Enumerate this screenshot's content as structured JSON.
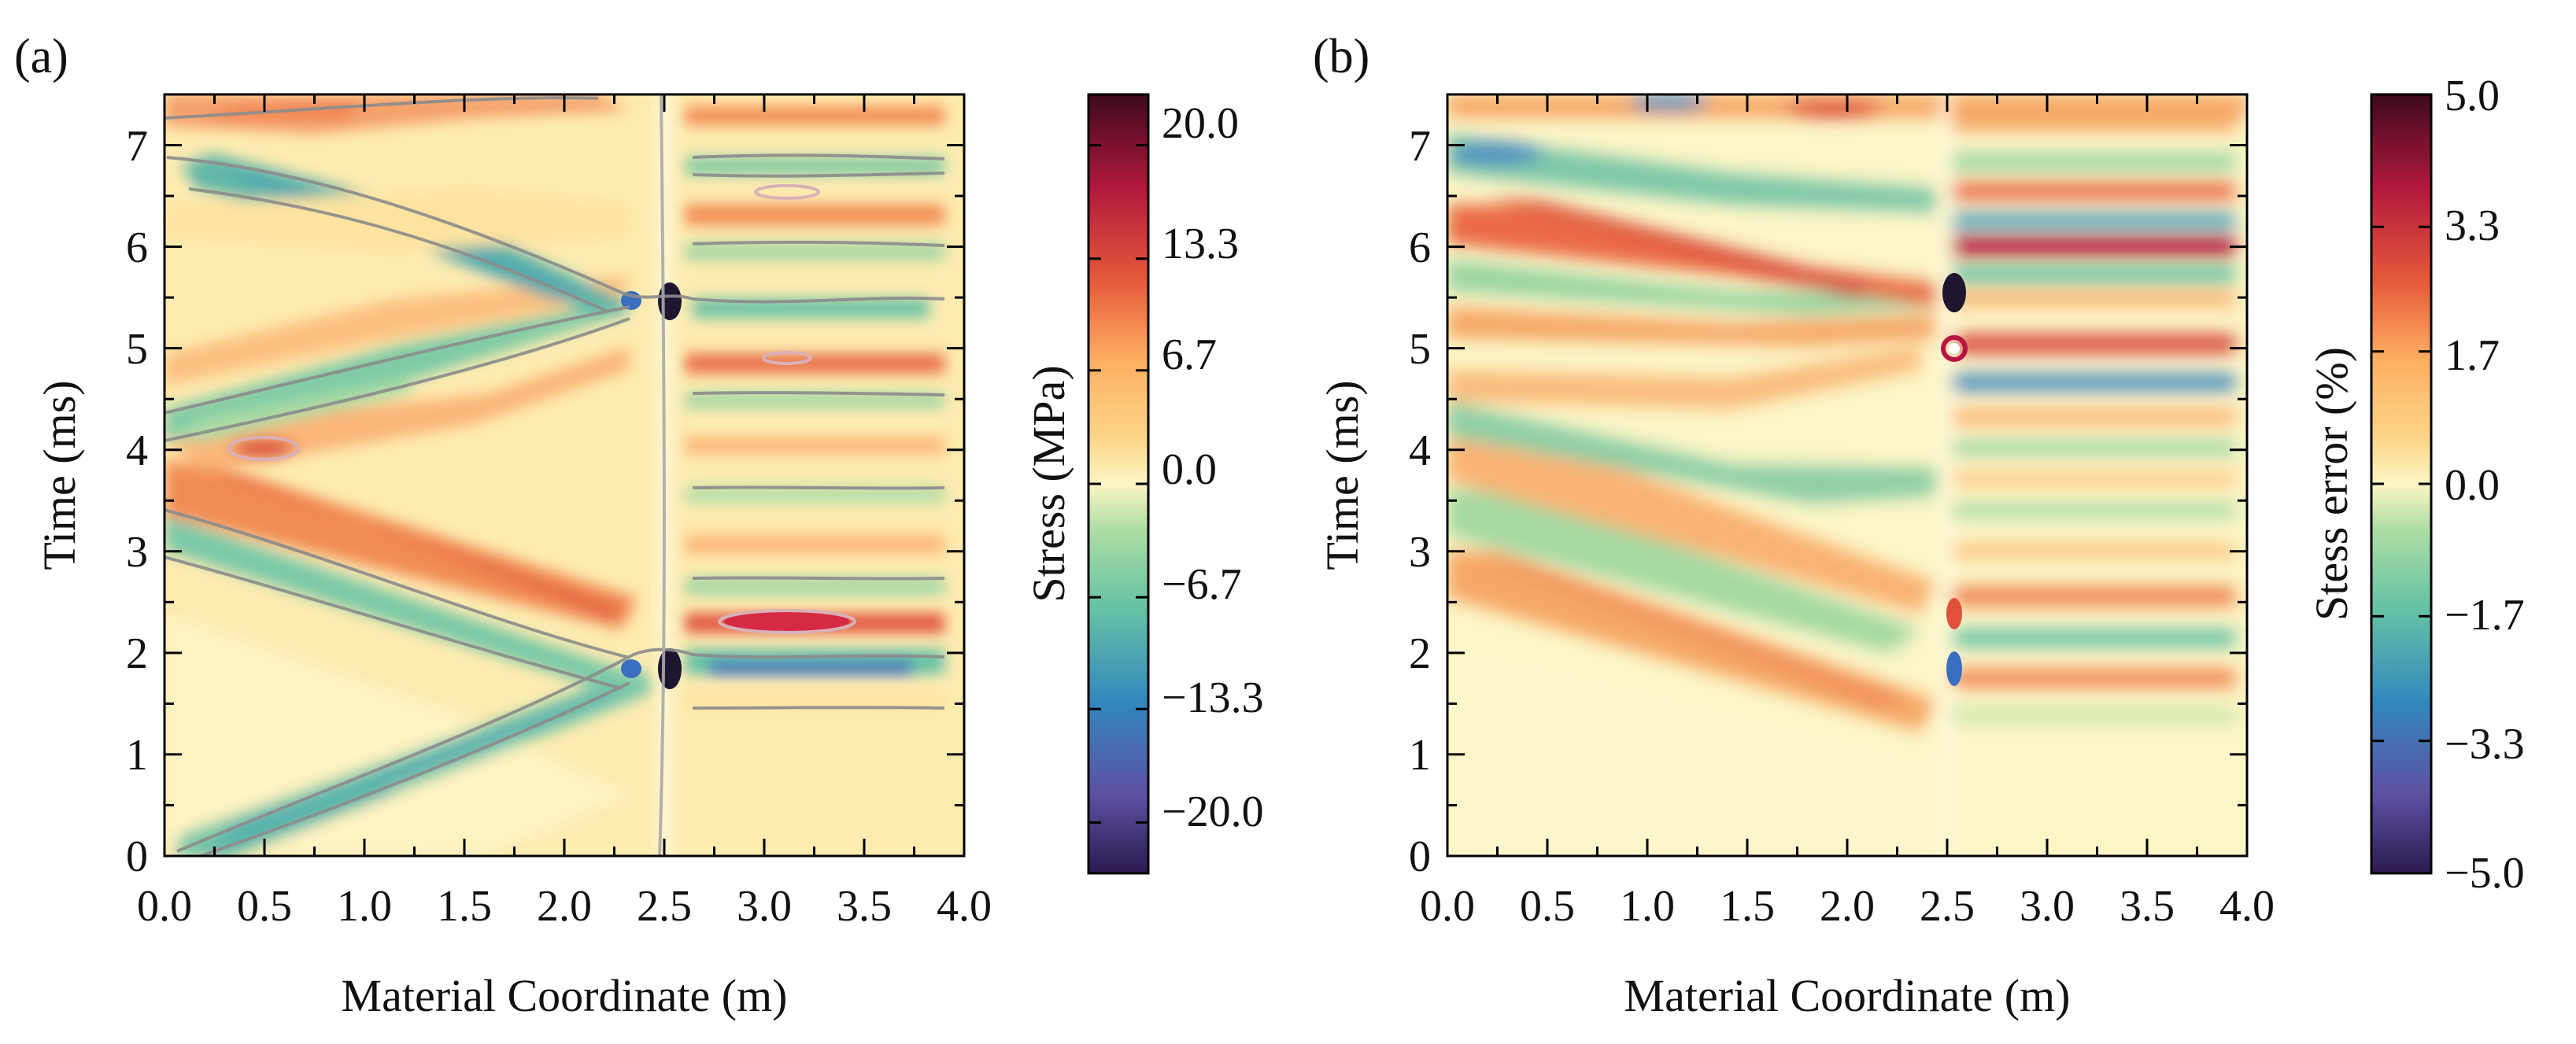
{
  "chart_data": [
    {
      "type": "heatmap",
      "panel_label": "(a)",
      "xlabel": "Material Coordinate (m)",
      "ylabel": "Time (ms)",
      "xlim": [
        0.0,
        4.0
      ],
      "ylim": [
        0,
        7.5
      ],
      "x_ticks": [
        "0.0",
        "0.5",
        "1.0",
        "1.5",
        "2.0",
        "2.5",
        "3.0",
        "3.5",
        "4.0"
      ],
      "y_ticks": [
        "0",
        "1",
        "2",
        "3",
        "4",
        "5",
        "6",
        "7"
      ],
      "colormap": "Spectral_r",
      "contours": true,
      "colorbar": {
        "label": "Stress (MPa)",
        "range": [
          -23,
          23
        ],
        "ticks": [
          "20.0",
          "13.3",
          "6.7",
          "0.0",
          "−6.7",
          "−13.3",
          "−20.0"
        ],
        "tick_values": [
          20.0,
          13.3,
          6.7,
          0.0,
          -6.7,
          -13.3,
          -20.0
        ]
      }
    },
    {
      "type": "heatmap",
      "panel_label": "(b)",
      "xlabel": "Material Coordinate (m)",
      "ylabel": "Time (ms)",
      "xlim": [
        0.0,
        4.0
      ],
      "ylim": [
        0,
        7.5
      ],
      "x_ticks": [
        "0.0",
        "0.5",
        "1.0",
        "1.5",
        "2.0",
        "2.5",
        "3.0",
        "3.5",
        "4.0"
      ],
      "y_ticks": [
        "0",
        "1",
        "2",
        "3",
        "4",
        "5",
        "6",
        "7"
      ],
      "colormap": "Spectral_r",
      "contours": false,
      "colorbar": {
        "label": "Stess error (%)",
        "range": [
          -5.0,
          5.0
        ],
        "ticks": [
          "5.0",
          "3.3",
          "1.7",
          "0.0",
          "−1.7",
          "−3.3",
          "−5.0"
        ],
        "tick_values": [
          5.0,
          3.3,
          1.7,
          0.0,
          -1.7,
          -3.3,
          -5.0
        ]
      }
    }
  ]
}
